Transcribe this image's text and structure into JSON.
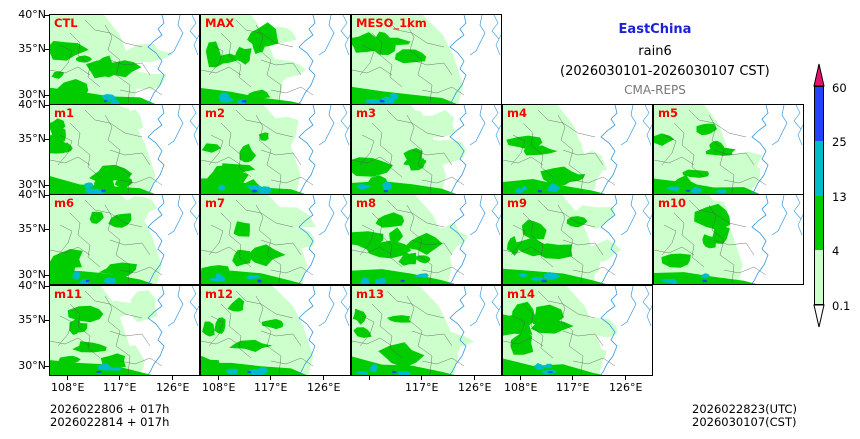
{
  "header": {
    "region": "EastChina",
    "variable": "rain6",
    "period": "(2026030101-2026030107 CST)",
    "model": "CMA-REPS"
  },
  "panels": [
    "CTL",
    "MAX",
    "MESO_1km",
    "m1",
    "m2",
    "m3",
    "m4",
    "m5",
    "m6",
    "m7",
    "m8",
    "m9",
    "m10",
    "m11",
    "m12",
    "m13",
    "m14"
  ],
  "axes": {
    "lat_labels": [
      "40°N",
      "35°N",
      "30°N"
    ],
    "lon_labels": [
      "108°E",
      "117°E",
      "126°E"
    ]
  },
  "colorbar": {
    "levels": [
      "0.1",
      "4",
      "13",
      "25",
      "60"
    ],
    "colors": [
      "#ffffff",
      "#ccffcc",
      "#00cc00",
      "#00bbcc",
      "#2244ff",
      "#e8106e"
    ]
  },
  "footer": {
    "left_line1": "2026022806  +  017h",
    "left_line2": "2026022814  +  017h",
    "right_line1": "2026022823(UTC)",
    "right_line2": "2026030107(CST)"
  },
  "map_colors": {
    "light": "#ccffcc",
    "green": "#00cc00",
    "cyan": "#00bbcc",
    "blue": "#2244ff",
    "coast": "#3399dd",
    "border": "#555555"
  }
}
